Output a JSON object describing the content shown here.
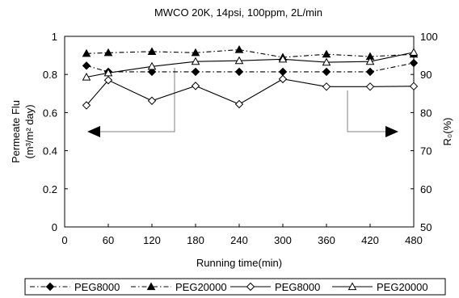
{
  "chart_data": {
    "type": "line",
    "title": "MWCO 20K, 14psi, 100ppm, 2L/min",
    "xlabel": "Running time(min)",
    "ylabel_left_line1": "Permeate Flu",
    "ylabel_left_line2": "(m³/m² day)",
    "ylabel_right": "R₀(%)",
    "x_ticks": [
      "0",
      "60",
      "120",
      "180",
      "240",
      "300",
      "360",
      "420",
      "480"
    ],
    "y_left_ticks": [
      "0",
      "0.2",
      "0.4",
      "0.6",
      "0.8",
      "1"
    ],
    "y_right_ticks": [
      "50",
      "60",
      "70",
      "80",
      "90",
      "100"
    ],
    "xlim": [
      0,
      480
    ],
    "ylim_left": [
      0,
      1
    ],
    "ylim_right": [
      50,
      100
    ],
    "grid": false,
    "legend_position": "bottom",
    "series": [
      {
        "name": "PEG8000",
        "axis": "right",
        "line": "dash-dot",
        "marker": "filled-diamond",
        "x": [
          30,
          60,
          120,
          180,
          240,
          300,
          360,
          420,
          480
        ],
        "y": [
          92.3,
          90.7,
          90.7,
          90.7,
          90.7,
          90.7,
          90.7,
          90.7,
          93.0
        ]
      },
      {
        "name": "PEG20000",
        "axis": "right",
        "line": "dash-dot",
        "marker": "filled-triangle",
        "x": [
          30,
          60,
          120,
          180,
          240,
          300,
          360,
          420,
          480
        ],
        "y": [
          95.5,
          95.7,
          96.0,
          95.7,
          96.5,
          94.5,
          95.3,
          94.7,
          95.3
        ]
      },
      {
        "name": "PEG8000",
        "axis": "right",
        "line": "solid",
        "marker": "open-diamond",
        "x": [
          30,
          60,
          120,
          180,
          240,
          300,
          360,
          420,
          480
        ],
        "y": [
          81.9,
          88.5,
          83.1,
          87.0,
          82.2,
          88.8,
          86.8,
          86.8,
          86.9
        ]
      },
      {
        "name": "PEG20000",
        "axis": "right",
        "line": "solid",
        "marker": "open-triangle",
        "x": [
          30,
          60,
          120,
          180,
          240,
          300,
          360,
          420,
          480
        ],
        "y": [
          89.3,
          90.4,
          92.1,
          93.4,
          93.6,
          94.0,
          93.2,
          93.4,
          95.8
        ]
      }
    ],
    "legend": [
      "PEG8000",
      "PEG20000",
      "PEG8000",
      "PEG20000"
    ]
  }
}
